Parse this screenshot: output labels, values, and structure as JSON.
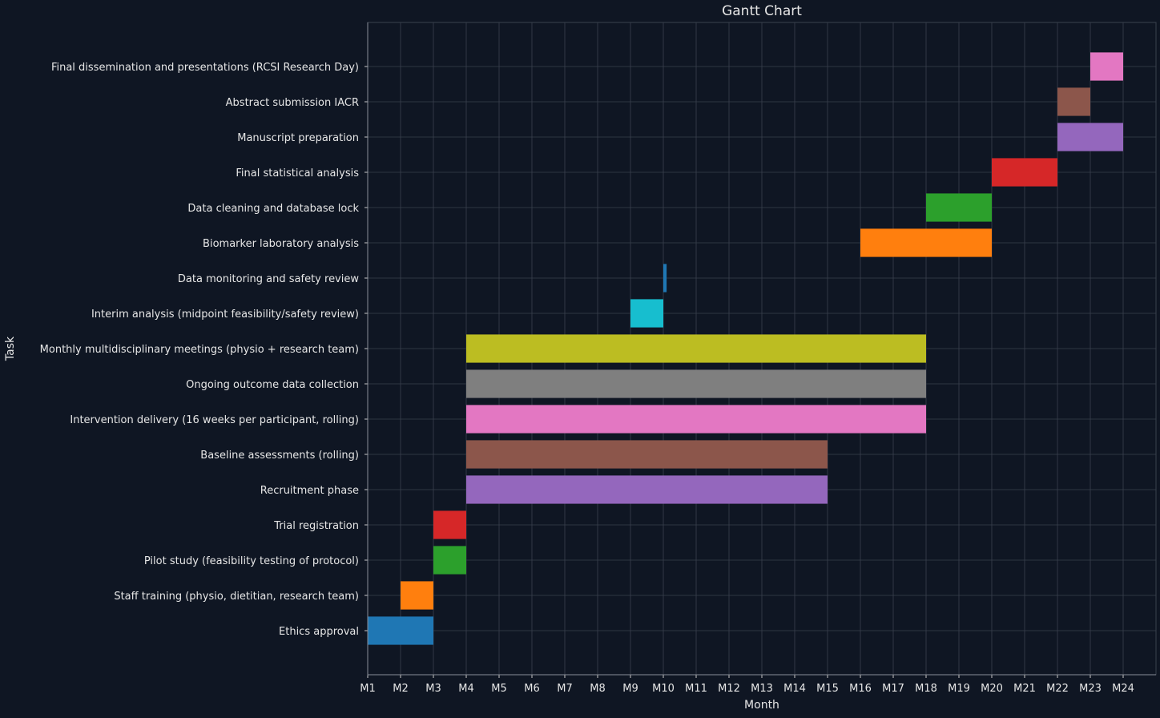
{
  "chart_data": {
    "type": "gantt",
    "title": "Gantt Chart",
    "xlabel": "Month",
    "ylabel": "Task",
    "xlim": [
      1,
      25
    ],
    "x_ticks": [
      "M1",
      "M2",
      "M3",
      "M4",
      "M5",
      "M6",
      "M7",
      "M8",
      "M9",
      "M10",
      "M11",
      "M12",
      "M13",
      "M14",
      "M15",
      "M16",
      "M17",
      "M18",
      "M19",
      "M20",
      "M21",
      "M22",
      "M23",
      "M24"
    ],
    "grid": true,
    "background": "#0f1623",
    "tasks": [
      {
        "name": "Ethics approval",
        "start": 1,
        "end": 3,
        "color": "#1f77b4"
      },
      {
        "name": "Staff training (physio, dietitian, research team)",
        "start": 2,
        "end": 3,
        "color": "#ff7f0e"
      },
      {
        "name": "Pilot study (feasibility testing of protocol)",
        "start": 3,
        "end": 4,
        "color": "#2ca02c"
      },
      {
        "name": "Trial registration",
        "start": 3,
        "end": 4,
        "color": "#d62728"
      },
      {
        "name": "Recruitment phase",
        "start": 4,
        "end": 15,
        "color": "#9467bd"
      },
      {
        "name": "Baseline assessments (rolling)",
        "start": 4,
        "end": 15,
        "color": "#8c564b"
      },
      {
        "name": "Intervention delivery (16 weeks per participant, rolling)",
        "start": 4,
        "end": 18,
        "color": "#e377c2"
      },
      {
        "name": "Ongoing outcome data collection",
        "start": 4,
        "end": 18,
        "color": "#7f7f7f"
      },
      {
        "name": "Monthly multidisciplinary meetings (physio + research team)",
        "start": 4,
        "end": 18,
        "color": "#bcbd22"
      },
      {
        "name": "Interim analysis (midpoint feasibility/safety review)",
        "start": 9,
        "end": 10,
        "color": "#17becf"
      },
      {
        "name": "Data monitoring and safety review",
        "start": 10,
        "end": 10.1,
        "color": "#1f77b4"
      },
      {
        "name": "Biomarker laboratory analysis",
        "start": 16,
        "end": 20,
        "color": "#ff7f0e"
      },
      {
        "name": "Data cleaning and database lock",
        "start": 18,
        "end": 20,
        "color": "#2ca02c"
      },
      {
        "name": "Final statistical analysis",
        "start": 20,
        "end": 22,
        "color": "#d62728"
      },
      {
        "name": "Manuscript preparation",
        "start": 22,
        "end": 24,
        "color": "#9467bd"
      },
      {
        "name": "Abstract submission IACR",
        "start": 22,
        "end": 23,
        "color": "#8c564b"
      },
      {
        "name": "Final dissemination and presentations (RCSI Research Day)",
        "start": 23,
        "end": 24,
        "color": "#e377c2"
      }
    ]
  }
}
